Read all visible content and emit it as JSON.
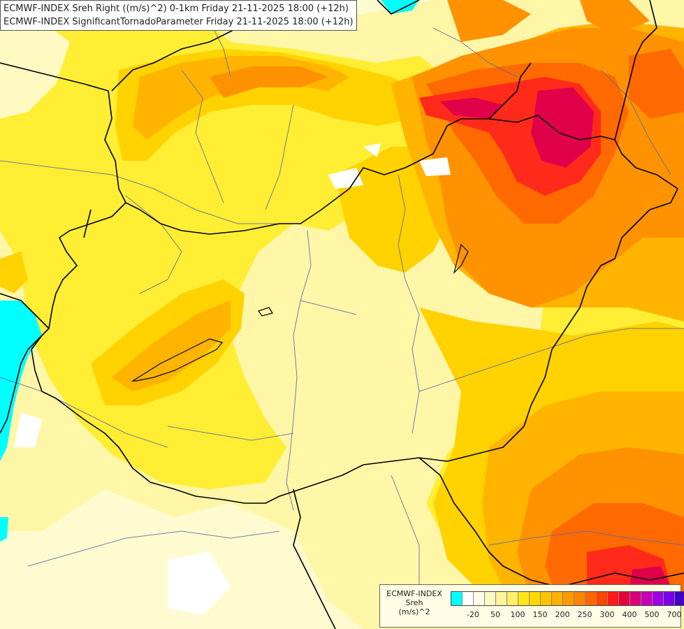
{
  "title": {
    "line1": "ECMWF-INDEX Sreh Right ((m/s)^2) 0-1km Friday 21-11-2025 18:00 (+12h)",
    "line2": "ECMWF-INDEX SignificantTornadoParameter Friday 21-11-2025 18:00 (+12h)"
  },
  "legend": {
    "title_line1": "ECMWF-INDEX",
    "title_line2": "Sreh",
    "title_line3": "(m/s)^2",
    "colors": [
      "#00ffff",
      "#ffffff",
      "#fffdea",
      "#fff9c4",
      "#fff59a",
      "#ffef6a",
      "#ffe61a",
      "#ffd800",
      "#ffc400",
      "#ffb000",
      "#ff9b00",
      "#ff8400",
      "#ff6600",
      "#ff4400",
      "#ff1a1a",
      "#e8003c",
      "#d6007a",
      "#c800b4",
      "#a000e6",
      "#7800e6",
      "#4000c8",
      "#0000a0"
    ],
    "tick_labels": [
      {
        "label": "-20",
        "index": 1
      },
      {
        "label": "50",
        "index": 3
      },
      {
        "label": "100",
        "index": 5
      },
      {
        "label": "150",
        "index": 7
      },
      {
        "label": "200",
        "index": 9
      },
      {
        "label": "250",
        "index": 11
      },
      {
        "label": "300",
        "index": 13
      },
      {
        "label": "400",
        "index": 15
      },
      {
        "label": "500",
        "index": 17
      },
      {
        "label": "700",
        "index": 19
      }
    ]
  },
  "map_colors": {
    "base": "#fffbd0",
    "pale": "#fff6a8",
    "yellow": "#ffee33",
    "gold": "#ffd200",
    "orange_light": "#ffb400",
    "orange": "#ff9200",
    "orange_dark": "#ff6a00",
    "red": "#ff2a1a",
    "crimson": "#e0004a",
    "cyan": "#00ffff",
    "border": "#000000",
    "river": "#5a6aa0"
  }
}
